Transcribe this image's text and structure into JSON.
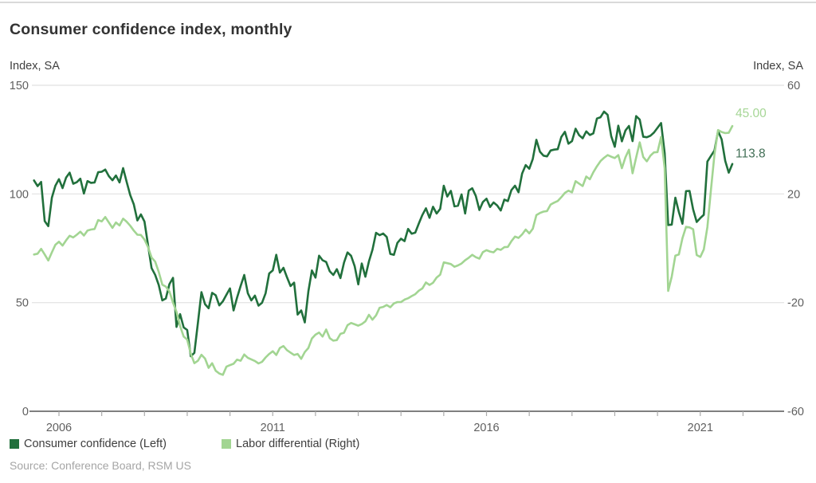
{
  "header": {
    "title": "Consumer confidence index, monthly"
  },
  "source": {
    "text": "Source: Conference Board, RSM US"
  },
  "colors": {
    "consumer_confidence_line": "#21703c",
    "labor_differential_line": "#a2d592",
    "consumer_confidence_label": "#426f56",
    "labor_differential_label": "#a6d696",
    "gridline": "#e6e6e6",
    "axis_line": "#555555",
    "tick_mark": "#ababab",
    "tick_label": "#5f5f5f",
    "title_text": "#333333",
    "caption_text": "#404040",
    "legend_text": "#3d3d3d",
    "source_text": "#a5a5a5",
    "top_border": "#d9d9d9"
  },
  "left_axis": {
    "title": "Index, SA",
    "tick_labels": [
      "150",
      "100",
      "50",
      "0"
    ],
    "tick_values": [
      150,
      100,
      50,
      0
    ],
    "ylim": [
      0,
      150
    ]
  },
  "right_axis": {
    "title": "Index, SA",
    "tick_labels": [
      "60",
      "20",
      "-20",
      "-60"
    ],
    "tick_values": [
      60,
      20,
      -20,
      -60
    ],
    "ylim": [
      -60,
      60
    ]
  },
  "x_axis": {
    "tick_years_start": 2006,
    "tick_years_end": 2022,
    "label_years": [
      "2006",
      "2011",
      "2016",
      "2021"
    ]
  },
  "legend": {
    "items": [
      {
        "label": "Consumer confidence (Left)",
        "color": "#21703c"
      },
      {
        "label": "Labor differential (Right)",
        "color": "#a2d592"
      }
    ]
  },
  "value_labels": [
    {
      "text": "45.00",
      "series": "Labor differential (Right)",
      "color": "#a6d696"
    },
    {
      "text": "113.8",
      "series": "Consumer confidence (Left)",
      "color": "#426f56"
    }
  ],
  "chart_data": {
    "type": "line",
    "title": "Consumer confidence index, monthly",
    "frequency": "monthly",
    "x_start": "2005-06",
    "x_end": "2021-10",
    "x_tick_labels": [
      "2006",
      "2011",
      "2016",
      "2021"
    ],
    "grid": "horizontal",
    "legend_position": "bottom-left",
    "left_ylim": [
      0,
      150
    ],
    "right_ylim": [
      -60,
      60
    ],
    "series": [
      {
        "name": "Consumer confidence (Left)",
        "axis": "left",
        "color": "#21703c",
        "end_label": "113.8",
        "values": [
          106.2,
          103.6,
          105.5,
          87.5,
          85.2,
          98.3,
          103.8,
          106.8,
          102.7,
          107.5,
          109.8,
          104.7,
          105.4,
          107.0,
          100.2,
          105.9,
          105.1,
          105.3,
          110.0,
          110.2,
          111.2,
          108.2,
          106.3,
          108.5,
          105.3,
          111.9,
          105.6,
          99.5,
          95.2,
          87.8,
          90.6,
          87.3,
          76.4,
          65.9,
          62.8,
          58.1,
          51.0,
          51.9,
          58.5,
          61.4,
          38.8,
          44.7,
          38.6,
          37.4,
          25.3,
          26.9,
          40.8,
          54.8,
          49.3,
          47.4,
          54.5,
          53.4,
          48.7,
          50.6,
          53.6,
          56.5,
          46.4,
          52.3,
          57.7,
          62.7,
          54.3,
          51.0,
          53.2,
          48.6,
          49.9,
          54.3,
          63.4,
          64.8,
          72.0,
          63.8,
          66.0,
          61.7,
          57.6,
          59.2,
          44.5,
          46.4,
          40.9,
          55.2,
          64.8,
          61.5,
          71.6,
          69.5,
          68.7,
          64.4,
          62.7,
          65.4,
          61.3,
          68.4,
          73.1,
          71.5,
          66.7,
          58.4,
          68.0,
          61.9,
          69.0,
          74.3,
          82.1,
          81.0,
          81.8,
          80.2,
          72.4,
          72.0,
          77.5,
          79.4,
          78.3,
          83.9,
          81.7,
          82.2,
          86.4,
          90.3,
          93.4,
          89.0,
          94.1,
          91.0,
          93.1,
          103.8,
          98.8,
          101.4,
          94.3,
          94.6,
          99.8,
          91.0,
          101.5,
          102.6,
          99.1,
          92.6,
          96.3,
          97.8,
          94.0,
          96.1,
          94.7,
          92.4,
          97.4,
          96.7,
          101.8,
          103.8,
          100.8,
          109.4,
          113.3,
          111.6,
          116.1,
          124.9,
          119.4,
          117.6,
          117.3,
          120.0,
          120.4,
          120.6,
          126.2,
          128.6,
          123.1,
          124.3,
          130.0,
          127.0,
          125.6,
          128.8,
          127.1,
          127.9,
          134.7,
          135.3,
          137.9,
          136.4,
          126.6,
          121.7,
          131.4,
          124.2,
          129.2,
          131.3,
          124.3,
          135.8,
          134.2,
          126.3,
          126.1,
          126.8,
          128.2,
          130.4,
          132.6,
          118.8,
          85.7,
          85.9,
          98.3,
          91.7,
          86.3,
          101.3,
          101.4,
          92.9,
          87.1,
          88.9,
          90.4,
          114.9,
          117.5,
          120.0,
          128.9,
          125.1,
          115.2,
          109.8,
          113.8
        ]
      },
      {
        "name": "Labor differential (Right)",
        "axis": "right",
        "color": "#a2d592",
        "end_label": "45.00",
        "values": [
          -2.3,
          -2.0,
          -0.2,
          -2.3,
          -4.5,
          -1.5,
          1.3,
          2.4,
          1.0,
          2.9,
          4.6,
          4.0,
          5.0,
          6.1,
          4.7,
          6.5,
          6.9,
          7.1,
          10.4,
          9.9,
          11.5,
          9.5,
          7.5,
          9.5,
          8.4,
          10.9,
          9.8,
          8.3,
          6.5,
          5.0,
          4.9,
          3.2,
          0.4,
          -3.4,
          -4.9,
          -8.7,
          -13.4,
          -14.1,
          -15.9,
          -20.0,
          -23.4,
          -28.6,
          -32.5,
          -33.6,
          -38.8,
          -42.3,
          -41.4,
          -39.2,
          -40.6,
          -44.0,
          -42.3,
          -45.1,
          -46.1,
          -46.6,
          -43.6,
          -43.0,
          -42.5,
          -41.0,
          -41.4,
          -39.1,
          -40.3,
          -40.9,
          -41.5,
          -42.4,
          -41.8,
          -40.2,
          -38.9,
          -37.9,
          -39.3,
          -36.7,
          -36.0,
          -37.5,
          -38.4,
          -39.3,
          -38.9,
          -40.7,
          -38.2,
          -36.7,
          -33.2,
          -31.8,
          -31.0,
          -32.5,
          -29.9,
          -33.1,
          -34.0,
          -33.8,
          -31.5,
          -31.1,
          -28.3,
          -27.5,
          -28.0,
          -28.5,
          -27.9,
          -26.9,
          -24.5,
          -26.3,
          -24.7,
          -21.9,
          -21.6,
          -20.9,
          -21.7,
          -20.3,
          -19.8,
          -19.8,
          -18.9,
          -18.4,
          -17.6,
          -16.9,
          -15.6,
          -14.8,
          -12.6,
          -13.5,
          -12.7,
          -10.8,
          -9.7,
          -5.2,
          -5.5,
          -5.8,
          -6.8,
          -6.3,
          -5.6,
          -4.4,
          -3.5,
          -2.4,
          -3.3,
          -3.8,
          -1.4,
          -0.7,
          -1.2,
          -1.5,
          -0.2,
          -0.6,
          0.4,
          0.5,
          2.6,
          4.3,
          3.8,
          5.1,
          6.9,
          5.5,
          7.2,
          12.2,
          13.0,
          13.5,
          13.7,
          16.1,
          16.8,
          17.4,
          18.8,
          20.4,
          21.2,
          20.6,
          24.7,
          23.8,
          22.9,
          26.4,
          25.4,
          28.0,
          30.2,
          32.1,
          33.3,
          34.3,
          33.7,
          33.2,
          34.3,
          29.5,
          33.5,
          36.3,
          27.6,
          33.4,
          39.0,
          33.6,
          32.0,
          34.1,
          35.3,
          35.4,
          41.0,
          29.5,
          -15.7,
          -10.4,
          -2.7,
          -2.3,
          3.7,
          7.9,
          7.7,
          7.0,
          -2.5,
          -3.2,
          -0.4,
          7.8,
          21.6,
          34.6,
          43.5,
          42.8,
          42.4,
          42.5,
          45.0
        ]
      }
    ]
  }
}
